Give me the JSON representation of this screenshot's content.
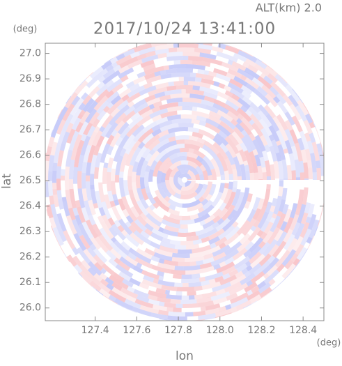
{
  "chart_data": {
    "type": "radar-field",
    "title": "2017/10/24 13:41:00",
    "subtitle": "ALT(km) 2.0",
    "x_label": "lon",
    "y_label": "lat",
    "x_unit": "(deg)",
    "y_unit": "(deg)",
    "xlim": [
      127.16,
      128.5
    ],
    "ylim": [
      25.95,
      27.04
    ],
    "xticks": [
      127.4,
      127.6,
      127.8,
      {
        "value": 128.0,
        "label": "128.0"
      },
      128.2,
      128.4
    ],
    "yticks": [
      {
        "value": 26.0,
        "label": "26.0"
      },
      26.1,
      26.2,
      26.3,
      26.4,
      26.5,
      26.6,
      26.7,
      26.8,
      26.9,
      {
        "value": 27.0,
        "label": "27.0"
      }
    ]
  }
}
